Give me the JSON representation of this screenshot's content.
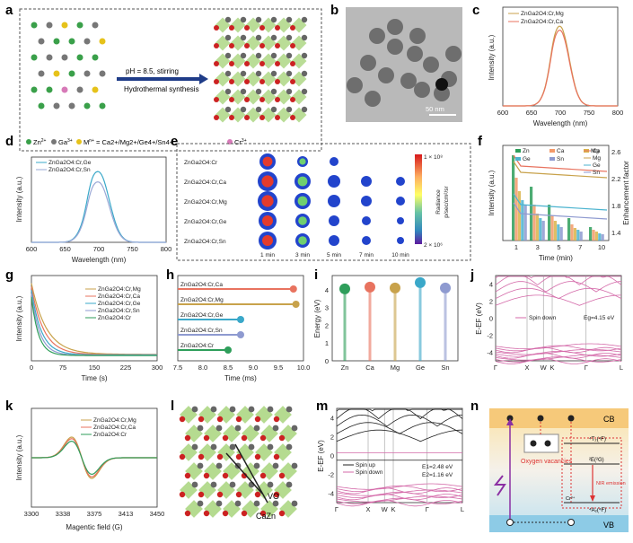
{
  "panels": {
    "a": {
      "label": "a",
      "zn": "Zn",
      "zn_sup": "2+",
      "ga": "Ga",
      "ga_sup": "3+",
      "m_label": "M",
      "m_sup": "n+",
      "m_eq": " = Ca",
      "ions": "2+/Mg2+/Ge4+/Sn4+",
      "cr": "Cr",
      "cr_sup": "3+",
      "arrow_top": "pH = 8.5,  stirring",
      "arrow_bottom": "Hydrothermal synthesis"
    },
    "b": {
      "label": "b",
      "scalebar": "50 nm"
    },
    "c": {
      "label": "c",
      "legend": [
        "ZnGa2O4:Cr,Mg",
        "ZnGa2O4:Cr,Ca"
      ],
      "colors": [
        "#c8a24b",
        "#e8735f"
      ],
      "ylabel": "Intensity (a.u.)",
      "xlabel": "Wavelength (nm)",
      "xticks": [
        "600",
        "650",
        "700",
        "750",
        "800"
      ]
    },
    "d": {
      "label": "d",
      "legend": [
        "ZnGa2O4:Cr,Ge",
        "ZnGa2O4:Cr,Sn"
      ],
      "colors": [
        "#3aa8c9",
        "#9aa8d6"
      ],
      "ylabel": "Intensity (a.u.)",
      "xlabel": "Wavelength (nm)",
      "xticks": [
        "600",
        "650",
        "700",
        "750",
        "800"
      ]
    },
    "e": {
      "label": "e",
      "rows": [
        "ZnGa2O4:Cr",
        "ZnGa2O4:Cr,Ca",
        "ZnGa2O4:Cr,Mg",
        "ZnGa2O4:Cr,Ge",
        "ZnGa2O4:Cr,Sn"
      ],
      "times": [
        "1 min",
        "3 min",
        "5 min",
        "7 min",
        "10 min"
      ],
      "cbar_top": "1 × 10⁸",
      "cbar_bottom": "2 × 10⁶",
      "cbar_title": "Radiance",
      "cbar_unit": "p/sec/cm²/sr"
    },
    "f": {
      "label": "f",
      "ylabel": "Intensity (a.u.)",
      "y2label": "Enhancement factor",
      "xlabel": "Time (min)",
      "xticks": [
        "1",
        "3",
        "5",
        "7",
        "10"
      ],
      "y2ticks": [
        "1.4",
        "1.8",
        "2.2",
        "2.6"
      ],
      "legend_bars": [
        "Zn",
        "Ca",
        "Mg",
        "Ge",
        "Sn"
      ],
      "legend_lines": [
        "Ca",
        "Mg",
        "Ge",
        "Sn"
      ]
    },
    "g": {
      "label": "g",
      "legend": [
        "ZnGa2O4:Cr,Mg",
        "ZnGa2O4:Cr,Ca",
        "ZnGa2O4:Cr,Ge",
        "ZnGa2O4:Cr,Sn",
        "ZnGa2O4:Cr"
      ],
      "ylabel": "Intensity (a.u.)",
      "xlabel": "Time (s)",
      "xticks": [
        "0",
        "75",
        "150",
        "225",
        "300"
      ]
    },
    "h": {
      "label": "h",
      "rows": [
        "ZnGa2O4:Cr,Ca",
        "ZnGa2O4:Cr,Mg",
        "ZnGa2O4:Cr,Ge",
        "ZnGa2O4:Cr,Sn",
        "ZnGa2O4:Cr"
      ],
      "xlabel": "Time (ms)",
      "xticks": [
        "7.5",
        "8.0",
        "8.5",
        "9.0",
        "9.5",
        "10.0"
      ]
    },
    "i": {
      "label": "i",
      "ylabel": "Energy (eV)",
      "cats": [
        "Zn",
        "Ca",
        "Mg",
        "Ge",
        "Sn"
      ],
      "yticks": [
        "0",
        "1",
        "2",
        "3",
        "4"
      ]
    },
    "j": {
      "label": "j",
      "ylabel": "E-EF (eV)",
      "legend": "Spin down",
      "gap": "Eg=4.15 eV",
      "yticks": [
        "4",
        "2",
        "0",
        "-2",
        "-4"
      ],
      "kpts": [
        "Γ",
        "X",
        "W",
        "K",
        "Γ",
        "L"
      ]
    },
    "k": {
      "label": "k",
      "legend": [
        "ZnGa2O4:Cr,Mg",
        "ZnGa2O4:Cr,Ca",
        "ZnGa2O4:Cr"
      ],
      "ylabel": "Intensity (a.u.)",
      "xlabel": "Magentic field (G)",
      "xticks": [
        "3300",
        "3338",
        "3375",
        "3413",
        "3450"
      ]
    },
    "l": {
      "label": "l",
      "vo": "VO",
      "caZn": "CaZn"
    },
    "m": {
      "label": "m",
      "ylabel": "E-EF (eV)",
      "legend": [
        "Spin up",
        "Spin down"
      ],
      "e1": "E1=2.48 eV",
      "e2": "E2=1.16 eV",
      "yticks": [
        "4",
        "2",
        "0",
        "-2",
        "-4"
      ],
      "kpts": [
        "Γ",
        "X",
        "W",
        "K",
        "Γ",
        "L"
      ]
    },
    "n": {
      "label": "n",
      "cb": "CB",
      "vb": "VB",
      "ov": "Oxygen vacancies",
      "t2": "⁴T₂(⁴F)",
      "e2g": "²E(²G)",
      "a2": "⁴A₂(⁴F)",
      "nir": "NIR emission",
      "cr": "Cr³⁺"
    }
  },
  "chart_data": [
    {
      "type": "line",
      "panel": "c",
      "xlim": [
        600,
        800
      ],
      "series": [
        {
          "name": "ZnGa2O4:Cr,Mg",
          "peak_x": 700,
          "peak_y": 1.0
        },
        {
          "name": "ZnGa2O4:Cr,Ca",
          "peak_x": 700,
          "peak_y": 0.96
        }
      ]
    },
    {
      "type": "line",
      "panel": "d",
      "xlim": [
        600,
        800
      ],
      "series": [
        {
          "name": "ZnGa2O4:Cr,Ge",
          "peak_x": 697,
          "peak_y": 1.0
        },
        {
          "name": "ZnGa2O4:Cr,Sn",
          "peak_x": 697,
          "peak_y": 0.86
        }
      ]
    },
    {
      "type": "line",
      "panel": "h",
      "xlim": [
        7.5,
        10.0
      ],
      "categories": [
        "ZnGa2O4:Cr,Ca",
        "ZnGa2O4:Cr,Mg",
        "ZnGa2O4:Cr,Ge",
        "ZnGa2O4:Cr,Sn",
        "ZnGa2O4:Cr"
      ],
      "values": [
        9.8,
        9.85,
        8.75,
        8.75,
        8.5
      ]
    },
    {
      "type": "scatter",
      "panel": "i",
      "categories": [
        "Zn",
        "Ca",
        "Mg",
        "Ge",
        "Sn"
      ],
      "values": [
        4.05,
        4.15,
        4.1,
        4.4,
        4.1
      ],
      "ylim": [
        0,
        4.8
      ]
    }
  ]
}
